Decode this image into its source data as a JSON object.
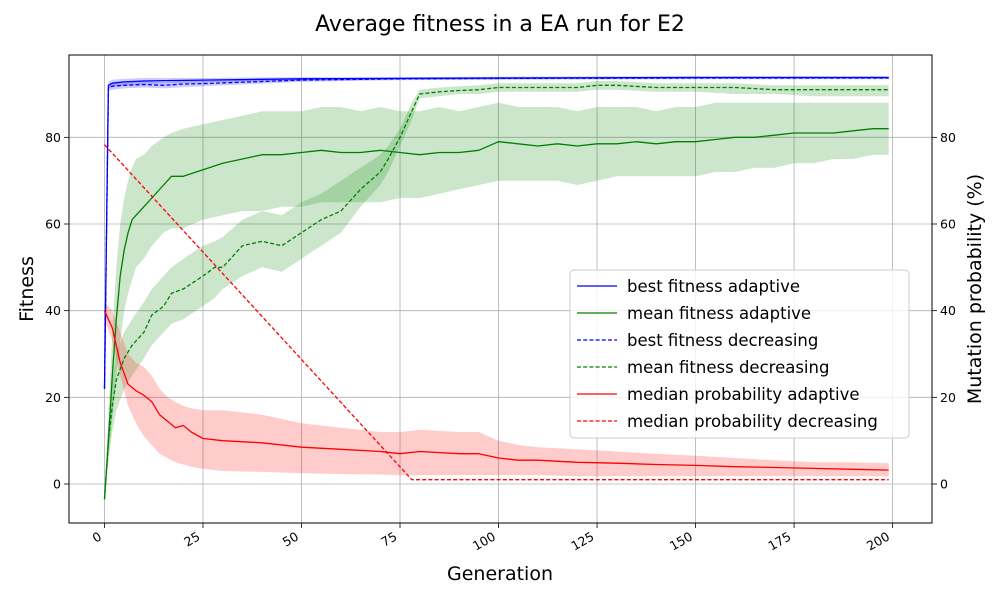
{
  "chart_data": {
    "type": "line",
    "title": "Average fitness in a EA run for E2",
    "xlabel": "Generation",
    "ylabel": "Fitness",
    "ylabel_right": "Mutation probability (%)",
    "xlim": [
      -9,
      210
    ],
    "ylim_left": [
      -9,
      99
    ],
    "ylim_right": [
      -9,
      99
    ],
    "xticks": [
      0,
      25,
      50,
      75,
      100,
      125,
      150,
      175,
      200
    ],
    "yticks_left": [
      0,
      20,
      40,
      60,
      80
    ],
    "yticks_right": [
      0,
      20,
      40,
      60,
      80
    ],
    "grid": true,
    "legend_position": "center-right",
    "series": [
      {
        "name": "best fitness adaptive",
        "color": "#0000ff",
        "style": "solid",
        "axis": "left",
        "x": [
          0,
          1,
          2,
          5,
          10,
          15,
          25,
          50,
          75,
          100,
          150,
          199
        ],
        "y": [
          22,
          92,
          92.5,
          92.8,
          93,
          93.1,
          93.2,
          93.5,
          93.6,
          93.7,
          93.8,
          93.8
        ],
        "band_lower": [
          20,
          91.2,
          91.7,
          92,
          92.3,
          92.5,
          92.7,
          93.1,
          93.3,
          93.4,
          93.5,
          93.5
        ],
        "band_upper": [
          24,
          92.8,
          93.3,
          93.5,
          93.7,
          93.7,
          93.7,
          93.9,
          93.9,
          94,
          94.1,
          94.1
        ]
      },
      {
        "name": "mean fitness adaptive",
        "color": "#008000",
        "style": "solid",
        "axis": "left",
        "x": [
          0,
          1,
          2,
          3,
          4,
          5,
          6,
          7,
          8,
          10,
          12,
          15,
          17,
          20,
          25,
          30,
          35,
          40,
          45,
          50,
          55,
          60,
          65,
          70,
          75,
          80,
          85,
          90,
          95,
          100,
          105,
          110,
          115,
          120,
          125,
          130,
          135,
          140,
          145,
          150,
          155,
          160,
          165,
          170,
          175,
          180,
          185,
          190,
          195,
          199
        ],
        "y": [
          -3.5,
          10,
          25,
          38,
          48,
          54,
          58,
          61,
          62,
          64,
          66,
          69,
          71,
          71,
          72.5,
          74,
          75,
          76,
          76,
          76.5,
          77,
          76.5,
          76.5,
          77,
          76.5,
          76,
          76.5,
          76.5,
          77,
          79,
          78.5,
          78,
          78.5,
          78,
          78.5,
          78.5,
          79,
          78.5,
          79,
          79,
          79.5,
          80,
          80,
          80.5,
          81,
          81,
          81,
          81.5,
          82,
          82
        ],
        "band_lower": [
          -4,
          5,
          15,
          25,
          33,
          40,
          44,
          47,
          50,
          52,
          55,
          58,
          59,
          59,
          61,
          62,
          63,
          63,
          64,
          64,
          65,
          65,
          65,
          65,
          66,
          66,
          67,
          68,
          69,
          70,
          70,
          70,
          70,
          69,
          70,
          71,
          71,
          71,
          71,
          71,
          72,
          72,
          73,
          73,
          74,
          74,
          75,
          75,
          76,
          76
        ],
        "band_upper": [
          -3,
          15,
          35,
          50,
          60,
          66,
          70,
          73,
          75,
          76,
          78,
          80,
          81,
          82,
          83,
          84,
          85,
          86,
          86,
          86,
          87,
          87,
          86,
          87,
          86,
          86,
          87,
          86,
          87,
          88,
          87,
          87,
          87,
          86,
          87,
          87,
          87,
          86,
          87,
          87,
          88,
          88,
          88,
          88,
          88,
          88,
          88,
          88,
          88,
          88
        ]
      },
      {
        "name": "best fitness decreasing",
        "color": "#0000ff",
        "style": "dashed",
        "axis": "left",
        "x": [
          0,
          1,
          2,
          5,
          10,
          15,
          20,
          25,
          50,
          75,
          100,
          150,
          199
        ],
        "y": [
          22,
          91.5,
          91.8,
          92,
          92.2,
          92,
          92.3,
          92.4,
          93.2,
          93.5,
          93.6,
          93.7,
          93.7
        ],
        "band_lower": [
          20,
          90.8,
          91,
          91.3,
          91.5,
          91.3,
          91.6,
          91.8,
          92.8,
          93.2,
          93.3,
          93.4,
          93.4
        ],
        "band_upper": [
          24,
          92.2,
          92.6,
          92.7,
          92.9,
          92.7,
          93,
          93,
          93.6,
          93.8,
          93.9,
          94,
          94
        ]
      },
      {
        "name": "mean fitness decreasing",
        "color": "#008000",
        "style": "dashed",
        "axis": "left",
        "x": [
          0,
          1,
          2,
          3,
          5,
          7,
          10,
          12,
          15,
          17,
          20,
          25,
          28,
          30,
          35,
          40,
          45,
          50,
          55,
          60,
          65,
          70,
          72,
          75,
          78,
          80,
          85,
          90,
          95,
          100,
          110,
          120,
          125,
          130,
          140,
          150,
          160,
          170,
          180,
          190,
          199
        ],
        "y": [
          -3.5,
          10,
          18,
          24,
          29,
          32,
          35,
          39,
          41,
          44,
          45,
          48,
          50,
          50,
          55,
          56,
          55,
          58,
          61,
          63,
          68,
          72,
          75,
          80,
          86,
          90,
          90.5,
          90.8,
          91,
          91.5,
          91.5,
          91.5,
          92,
          92,
          91.5,
          91.5,
          91.5,
          91,
          91,
          91,
          91
        ],
        "band_lower": [
          -4,
          6,
          12,
          17,
          22,
          25,
          29,
          32,
          35,
          37,
          38,
          41,
          43,
          45,
          48,
          50,
          49,
          52,
          55,
          58,
          64,
          69,
          72,
          78,
          84,
          89,
          89.5,
          90,
          90,
          90.5,
          90.5,
          90.5,
          91,
          91,
          90.5,
          90.5,
          90,
          90,
          89.5,
          89.5,
          89.5
        ],
        "band_upper": [
          -3,
          14,
          24,
          30,
          35,
          38,
          42,
          45,
          48,
          50,
          52,
          55,
          56,
          57,
          61,
          63,
          62,
          65,
          67,
          70,
          73,
          76,
          78,
          82,
          88,
          91,
          91.5,
          91.8,
          92,
          92.5,
          92.5,
          92.5,
          93,
          93,
          92.5,
          92.5,
          92.5,
          92,
          92,
          92,
          92
        ]
      },
      {
        "name": "median probability adaptive",
        "color": "#ff0000",
        "style": "solid",
        "axis": "right",
        "x": [
          0,
          2,
          4,
          6,
          8,
          10,
          12,
          14,
          16,
          18,
          20,
          22,
          25,
          30,
          40,
          50,
          60,
          70,
          75,
          80,
          90,
          95,
          100,
          105,
          110,
          120,
          130,
          140,
          150,
          160,
          170,
          180,
          190,
          199
        ],
        "y": [
          40,
          36,
          28,
          23,
          21.5,
          20.5,
          19,
          16,
          14.5,
          13,
          13.5,
          12,
          10.5,
          10,
          9.5,
          8.5,
          8,
          7.5,
          7,
          7.5,
          7,
          7,
          6,
          5.5,
          5.5,
          5,
          4.8,
          4.5,
          4.3,
          4,
          3.8,
          3.6,
          3.4,
          3.2
        ],
        "band_lower": [
          38,
          33,
          25,
          18,
          14,
          11,
          9,
          7,
          6,
          5,
          4.5,
          4,
          3.5,
          3,
          2.8,
          2.5,
          2.3,
          2.2,
          2,
          2,
          2,
          2,
          2,
          2,
          2,
          1.8,
          1.8,
          1.8,
          1.8,
          1.8,
          1.8,
          1.8,
          1.8,
          1.8
        ],
        "band_upper": [
          42,
          40,
          35,
          30,
          28,
          27,
          25,
          22,
          20,
          19,
          18,
          17.5,
          17,
          17,
          16,
          14,
          13,
          12,
          12,
          12.5,
          12,
          12,
          10,
          9,
          8.5,
          8,
          7.5,
          7,
          6.5,
          6,
          5.5,
          5,
          5,
          4.8
        ]
      },
      {
        "name": "median probability decreasing",
        "color": "#ff0000",
        "style": "dashed",
        "axis": "right",
        "x": [
          0,
          78,
          199
        ],
        "y": [
          78.3,
          1,
          1
        ]
      }
    ]
  }
}
